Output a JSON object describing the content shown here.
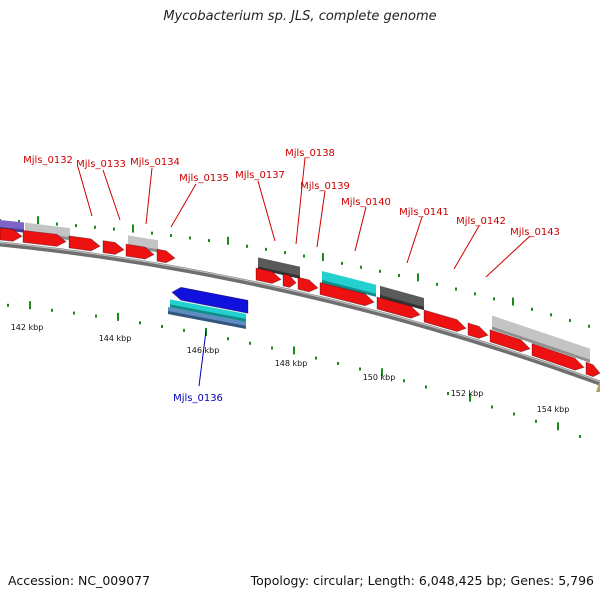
{
  "title": "Mycobacterium sp. JLS, complete genome",
  "footer": {
    "accession": "Accession: NC_009077",
    "summary": "Topology: circular; Length: 6,048,425 bp; Genes: 5,796"
  },
  "colors": {
    "red_gene": "#ee1111",
    "gray_gene": "#c4c4c4",
    "dark_gene": "#5a5a5a",
    "cyan_gene": "#22d0d0",
    "blue_gene": "#1111dd",
    "steel_gene": "#5f8cc0",
    "purple_gene": "#7d63c8",
    "label_red": "#cc0000",
    "label_blue": "#0000bb",
    "tick_green": "#1a8a1a"
  },
  "ruler_labels": [
    "142 kbp",
    "144 kbp",
    "146 kbp",
    "148 kbp",
    "150 kbp",
    "152 kbp",
    "154 kbp"
  ],
  "gene_labels": [
    "Mjls_0132",
    "Mjls_0133",
    "Mjls_0134",
    "Mjls_0135",
    "Mjls_0136",
    "Mjls_0137",
    "Mjls_0138",
    "Mjls_0139",
    "Mjls_0140",
    "Mjls_0141",
    "Mjls_0142",
    "Mjls_0143"
  ]
}
